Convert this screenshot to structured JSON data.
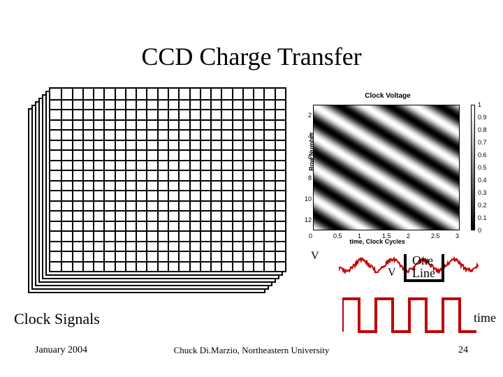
{
  "title": "CCD Charge Transfer",
  "grid": {
    "rows": 18,
    "cols": 22,
    "layers": 7,
    "layer_offset_x": -5,
    "layer_offset_y": 5
  },
  "heatmap": {
    "title": "Clock Voltage",
    "ylabel": "Row Number",
    "xlabel": "time, Clock Cycles",
    "yticks": [
      2,
      4,
      6,
      8,
      10,
      12
    ],
    "xticks": [
      0,
      0.5,
      1,
      1.5,
      2,
      2.5,
      3
    ],
    "cbar_ticks": [
      1,
      0.9,
      0.8,
      0.7,
      0.6,
      0.5,
      0.4,
      0.3,
      0.2,
      0.1,
      0
    ],
    "rows": 12,
    "periods": 3
  },
  "labels": {
    "v1": "V",
    "v2": "V",
    "oneline1": "One",
    "oneline2": "Line",
    "time": "time",
    "clock_signals": "Clock Signals"
  },
  "footer": {
    "date": "January 2004",
    "mid": "Chuck Di.Marzio, Northeastern University",
    "page": "24"
  },
  "colors": {
    "line": "#000000",
    "wave": "#c00000",
    "grad_light": "#ffffff",
    "grad_dark": "#2a2a2a"
  }
}
